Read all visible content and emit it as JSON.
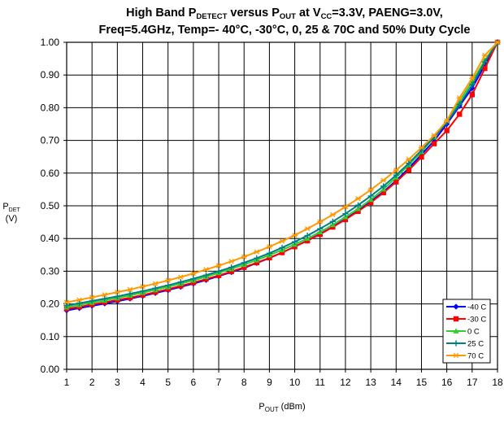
{
  "chart_data": {
    "type": "line",
    "title": {
      "line1": {
        "pre": "High Band P",
        "sub1": "DETECT",
        "mid": " versus P",
        "sub2": "OUT",
        "mid2": " at V",
        "sub3": "CC",
        "post": "=3.3V, PAENG=3.0V,"
      },
      "line2": "Freq=5.4GHz, Temp=- 40°C, -30°C, 0, 25 & 70C and 50% Duty Cycle"
    },
    "xlabel": {
      "main": "P",
      "sub": "OUT",
      "unit": " (dBm)"
    },
    "ylabel": {
      "main": "P",
      "sub": "DET",
      "unit": "(V)"
    },
    "xlim": [
      1,
      18
    ],
    "ylim": [
      0,
      1
    ],
    "x_ticks": [
      "1",
      "2",
      "3",
      "4",
      "5",
      "6",
      "7",
      "8",
      "9",
      "10",
      "11",
      "12",
      "13",
      "14",
      "15",
      "16",
      "17",
      "18"
    ],
    "y_ticks": [
      "0.00",
      "0.10",
      "0.20",
      "0.30",
      "0.40",
      "0.50",
      "0.60",
      "0.70",
      "0.80",
      "0.90",
      "1.00"
    ],
    "grid": true,
    "legend_position": "bottom-right",
    "x": [
      1,
      1.5,
      2,
      2.5,
      3,
      3.5,
      4,
      4.5,
      5,
      5.5,
      6,
      6.5,
      7,
      7.5,
      8,
      8.5,
      9,
      9.5,
      10,
      10.5,
      11,
      11.5,
      12,
      12.5,
      13,
      13.5,
      14,
      14.5,
      15,
      15.5,
      16,
      16.5,
      17,
      17.5,
      18
    ],
    "series": [
      {
        "name": "-40 C",
        "color": "#0000ff",
        "marker": "diamond",
        "values": [
          0.18,
          0.187,
          0.194,
          0.201,
          0.208,
          0.216,
          0.224,
          0.233,
          0.242,
          0.252,
          0.262,
          0.273,
          0.285,
          0.297,
          0.31,
          0.325,
          0.34,
          0.357,
          0.375,
          0.394,
          0.414,
          0.436,
          0.46,
          0.485,
          0.513,
          0.543,
          0.577,
          0.615,
          0.657,
          0.699,
          0.75,
          0.805,
          0.86,
          0.93,
          1.0
        ]
      },
      {
        "name": "-30 C",
        "color": "#ff0000",
        "marker": "square",
        "values": [
          0.185,
          0.191,
          0.198,
          0.205,
          0.212,
          0.219,
          0.227,
          0.236,
          0.245,
          0.255,
          0.265,
          0.276,
          0.287,
          0.299,
          0.312,
          0.326,
          0.341,
          0.357,
          0.375,
          0.393,
          0.413,
          0.435,
          0.458,
          0.483,
          0.51,
          0.54,
          0.573,
          0.609,
          0.649,
          0.69,
          0.73,
          0.78,
          0.84,
          0.92,
          1.0
        ]
      },
      {
        "name": "0 C",
        "color": "#33cc33",
        "marker": "triangle",
        "values": [
          0.19,
          0.197,
          0.204,
          0.211,
          0.218,
          0.226,
          0.234,
          0.243,
          0.252,
          0.262,
          0.272,
          0.283,
          0.295,
          0.307,
          0.32,
          0.334,
          0.349,
          0.365,
          0.382,
          0.4,
          0.42,
          0.442,
          0.466,
          0.491,
          0.519,
          0.551,
          0.587,
          0.625,
          0.665,
          0.71,
          0.76,
          0.82,
          0.88,
          0.945,
          1.0
        ]
      },
      {
        "name": "25 C",
        "color": "#008080",
        "marker": "plus",
        "values": [
          0.195,
          0.202,
          0.209,
          0.216,
          0.223,
          0.231,
          0.239,
          0.248,
          0.257,
          0.267,
          0.277,
          0.288,
          0.3,
          0.312,
          0.326,
          0.34,
          0.355,
          0.372,
          0.39,
          0.409,
          0.43,
          0.452,
          0.476,
          0.502,
          0.53,
          0.56,
          0.594,
          0.63,
          0.67,
          0.71,
          0.755,
          0.81,
          0.87,
          0.94,
          1.0
        ]
      },
      {
        "name": "70 C",
        "color": "#ff9900",
        "marker": "star",
        "values": [
          0.205,
          0.212,
          0.22,
          0.228,
          0.236,
          0.244,
          0.253,
          0.262,
          0.272,
          0.282,
          0.293,
          0.305,
          0.317,
          0.33,
          0.344,
          0.359,
          0.375,
          0.392,
          0.41,
          0.43,
          0.451,
          0.473,
          0.497,
          0.522,
          0.549,
          0.578,
          0.609,
          0.642,
          0.678,
          0.715,
          0.76,
          0.83,
          0.89,
          0.96,
          1.0
        ]
      }
    ]
  }
}
